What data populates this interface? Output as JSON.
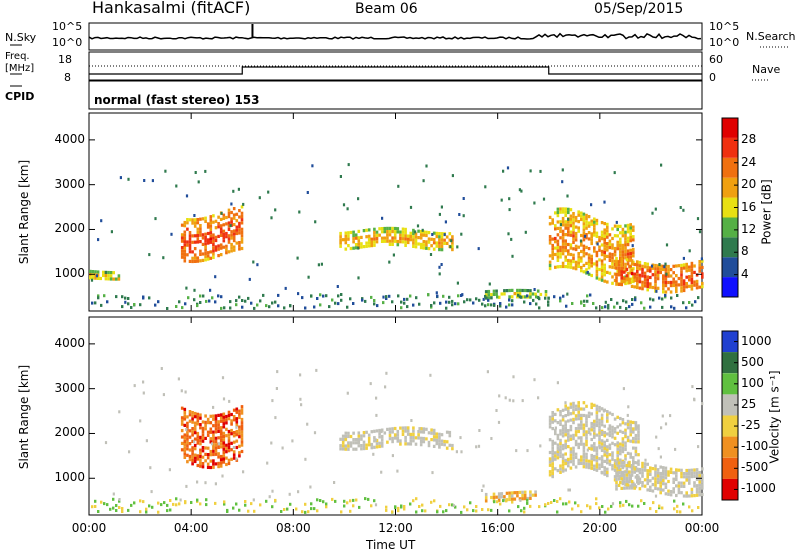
{
  "header": {
    "title": "Hankasalmi (fitACF)",
    "beam": "Beam 06",
    "date": "05/Sep/2015"
  },
  "left_labels": {
    "nsky": "N.Sky",
    "freq": "Freq.",
    "freq_unit": "[MHz]",
    "cpid": "CPID"
  },
  "right_labels": {
    "nsearch": "N.Search",
    "nave": "Nave"
  },
  "noise_panel": {
    "left_ticks": [
      "10^5",
      "10^0"
    ],
    "right_ticks": [
      "10^5",
      "10^0"
    ]
  },
  "freq_panel": {
    "left_ticks": [
      "18",
      "8"
    ],
    "right_ticks": [
      "60",
      "0"
    ]
  },
  "cpid_text": "normal (fast stereo) 153",
  "colors": {
    "power": [
      "#1010ff",
      "#204d9a",
      "#2f7a4e",
      "#55b045",
      "#e8e012",
      "#f0a010",
      "#f07010",
      "#f03010",
      "#e00000"
    ],
    "velocity": [
      "#2040d0",
      "#307040",
      "#60c040",
      "#c0c0b8",
      "#f0d040",
      "#f09020",
      "#f06010",
      "#e00000"
    ]
  },
  "chart_data": [
    {
      "type": "heatmap",
      "title": "Power",
      "ylabel": "Slant Range [km]",
      "ylim": [
        180,
        4600
      ],
      "yticks": [
        "1000",
        "2000",
        "3000",
        "4000"
      ],
      "colorbar": {
        "label": "Power [dB]",
        "ticks": [
          "4",
          "8",
          "12",
          "16",
          "20",
          "24",
          "28"
        ],
        "range": [
          0,
          32
        ]
      },
      "regions": [
        {
          "t_start": 0.0,
          "t_end": 1.2,
          "r_min": 900,
          "r_max": 1100,
          "value": 12
        },
        {
          "t_start": 3.6,
          "t_end": 6.0,
          "r_min": 1400,
          "r_max": 2400,
          "value": 20
        },
        {
          "t_start": 9.8,
          "t_end": 14.2,
          "r_min": 1600,
          "r_max": 2000,
          "value": 14
        },
        {
          "t_start": 15.5,
          "t_end": 18.0,
          "r_min": 480,
          "r_max": 650,
          "value": 10
        },
        {
          "t_start": 18.0,
          "t_end": 21.3,
          "r_min": 1000,
          "r_max": 2300,
          "value": 16
        },
        {
          "t_start": 20.6,
          "t_end": 24.0,
          "r_min": 700,
          "r_max": 1300,
          "value": 20
        }
      ]
    },
    {
      "type": "heatmap",
      "title": "Velocity",
      "xlabel": "Time UT",
      "ylabel": "Slant Range [km]",
      "ylim": [
        180,
        4600
      ],
      "yticks": [
        "1000",
        "2000",
        "3000",
        "4000"
      ],
      "xticks": [
        "00:00",
        "04:00",
        "08:00",
        "12:00",
        "16:00",
        "20:00",
        "00:00"
      ],
      "xlim": [
        0,
        24
      ],
      "colorbar": {
        "label": "Velocity [m s⁻¹]",
        "ticks": [
          "1000",
          "500",
          "100",
          "25",
          "-25",
          "-100",
          "-500",
          "-1000"
        ]
      },
      "regions": [
        {
          "t_start": 3.6,
          "t_end": 6.0,
          "r_min": 1400,
          "r_max": 2600,
          "value": -300
        },
        {
          "t_start": 9.8,
          "t_end": 14.2,
          "r_min": 1700,
          "r_max": 2100,
          "value": 0
        },
        {
          "t_start": 15.5,
          "t_end": 17.5,
          "r_min": 500,
          "r_max": 700,
          "value": -60
        },
        {
          "t_start": 18.0,
          "t_end": 21.5,
          "r_min": 1000,
          "r_max": 2500,
          "value": 0
        },
        {
          "t_start": 20.6,
          "t_end": 24.0,
          "r_min": 700,
          "r_max": 1300,
          "value": 0
        }
      ]
    }
  ]
}
